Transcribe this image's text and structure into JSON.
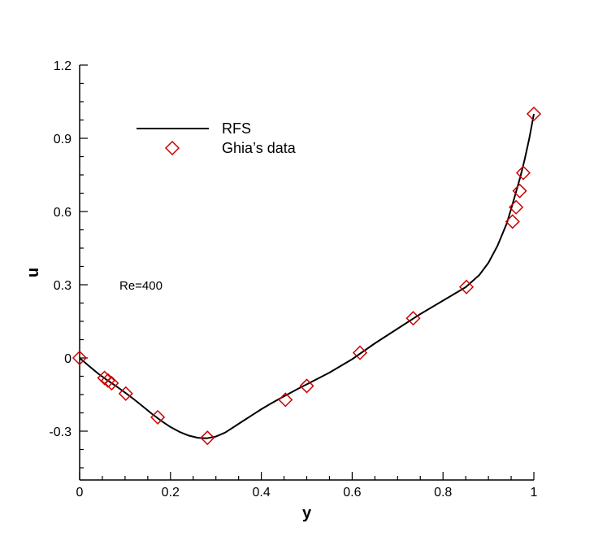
{
  "chart_data": {
    "type": "line",
    "title": "",
    "xlabel": "y",
    "ylabel": "u",
    "xlim": [
      0,
      1
    ],
    "ylim": [
      -0.5,
      1.2
    ],
    "xticks": [
      0,
      0.2,
      0.4,
      0.6,
      0.8,
      1
    ],
    "xtick_labels": [
      "0",
      "0.2",
      "0.4",
      "0.6",
      "0.8",
      "1"
    ],
    "yticks": [
      -0.3,
      0,
      0.3,
      0.6,
      0.9,
      1.2
    ],
    "ytick_labels": [
      "-0.3",
      "0",
      "0.3",
      "0.6",
      "0.9",
      "1.2"
    ],
    "grid": false,
    "legend_position": "top-left",
    "annotation": "Re=400",
    "series": [
      {
        "name": "RFS",
        "kind": "line",
        "color": "#000000",
        "x": [
          0,
          0.02,
          0.04,
          0.06,
          0.08,
          0.1,
          0.12,
          0.14,
          0.16,
          0.18,
          0.2,
          0.22,
          0.24,
          0.26,
          0.28,
          0.3,
          0.32,
          0.34,
          0.36,
          0.38,
          0.4,
          0.42,
          0.44,
          0.46,
          0.48,
          0.5,
          0.55,
          0.6,
          0.65,
          0.7,
          0.75,
          0.8,
          0.85,
          0.88,
          0.9,
          0.92,
          0.94,
          0.95,
          0.96,
          0.97,
          0.98,
          0.99,
          1.0
        ],
        "y": [
          0,
          -0.032,
          -0.063,
          -0.09,
          -0.115,
          -0.142,
          -0.17,
          -0.2,
          -0.23,
          -0.258,
          -0.283,
          -0.303,
          -0.318,
          -0.327,
          -0.329,
          -0.322,
          -0.306,
          -0.282,
          -0.258,
          -0.234,
          -0.21,
          -0.188,
          -0.167,
          -0.147,
          -0.127,
          -0.108,
          -0.06,
          -0.005,
          0.06,
          0.12,
          0.18,
          0.235,
          0.29,
          0.34,
          0.39,
          0.46,
          0.55,
          0.61,
          0.675,
          0.74,
          0.815,
          0.9,
          1.0
        ]
      },
      {
        "name": "Ghia’s data",
        "kind": "scatter",
        "marker": "diamond",
        "color": "#cc0000",
        "x": [
          0,
          0.0547,
          0.0625,
          0.0703,
          0.1016,
          0.1719,
          0.2813,
          0.4531,
          0.5,
          0.6172,
          0.7344,
          0.8516,
          0.9531,
          0.9609,
          0.9688,
          0.9766,
          1.0
        ],
        "y": [
          0,
          -0.08186,
          -0.09266,
          -0.10338,
          -0.14612,
          -0.24299,
          -0.32726,
          -0.17119,
          -0.11477,
          0.02135,
          0.16256,
          0.29093,
          0.55892,
          0.61756,
          0.68439,
          0.75837,
          1.0
        ]
      }
    ]
  }
}
